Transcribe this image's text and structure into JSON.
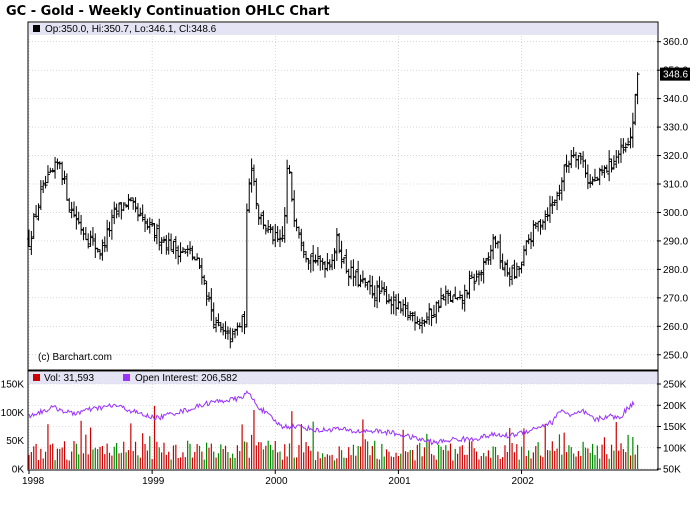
{
  "chart_data": {
    "type": "ohlc",
    "title": "GC - Gold - Weekly Continuation OHLC Chart",
    "copyright": "(c) Barchart.com",
    "price_panel": {
      "legend": "Op:350.0, Hi:350.7, Lo:346.1, Cl:348.6",
      "last_price_label": "348.6",
      "last_price": 348.6,
      "ylim": [
        245,
        362
      ],
      "yticks": [
        250,
        260,
        270,
        280,
        290,
        300,
        310,
        320,
        330,
        340,
        350,
        360
      ],
      "ytick_labels": [
        "250.0",
        "260.0",
        "270.0",
        "280.0",
        "290.0",
        "300.0",
        "310.0",
        "320.0",
        "330.0",
        "340.0",
        "350.0",
        "360.0"
      ],
      "grid": true,
      "anchors": [
        [
          1998.0,
          290
        ],
        [
          1998.1,
          307
        ],
        [
          1998.25,
          318
        ],
        [
          1998.33,
          302
        ],
        [
          1998.45,
          293
        ],
        [
          1998.58,
          286
        ],
        [
          1998.7,
          300
        ],
        [
          1998.8,
          304
        ],
        [
          1998.93,
          296
        ],
        [
          1999.05,
          292
        ],
        [
          1999.2,
          287
        ],
        [
          1999.3,
          286
        ],
        [
          1999.4,
          280
        ],
        [
          1999.45,
          270
        ],
        [
          1999.52,
          260
        ],
        [
          1999.58,
          257
        ],
        [
          1999.65,
          256
        ],
        [
          1999.7,
          260
        ],
        [
          1999.75,
          262
        ],
        [
          1999.77,
          300
        ],
        [
          1999.8,
          320
        ],
        [
          1999.86,
          300
        ],
        [
          1999.95,
          293
        ],
        [
          2000.05,
          288
        ],
        [
          2000.08,
          300
        ],
        [
          2000.1,
          318
        ],
        [
          2000.15,
          300
        ],
        [
          2000.25,
          286
        ],
        [
          2000.35,
          282
        ],
        [
          2000.45,
          283
        ],
        [
          2000.5,
          290
        ],
        [
          2000.58,
          280
        ],
        [
          2000.7,
          275
        ],
        [
          2000.8,
          272
        ],
        [
          2000.9,
          271
        ],
        [
          2001.0,
          266
        ],
        [
          2001.1,
          264
        ],
        [
          2001.2,
          262
        ],
        [
          2001.28,
          265
        ],
        [
          2001.35,
          270
        ],
        [
          2001.42,
          270
        ],
        [
          2001.5,
          268
        ],
        [
          2001.58,
          275
        ],
        [
          2001.65,
          278
        ],
        [
          2001.72,
          282
        ],
        [
          2001.78,
          292
        ],
        [
          2001.85,
          280
        ],
        [
          2001.9,
          279
        ],
        [
          2001.95,
          278
        ],
        [
          2002.0,
          282
        ],
        [
          2002.05,
          290
        ],
        [
          2002.12,
          295
        ],
        [
          2002.2,
          300
        ],
        [
          2002.28,
          305
        ],
        [
          2002.35,
          315
        ],
        [
          2002.42,
          322
        ],
        [
          2002.5,
          318
        ],
        [
          2002.55,
          310
        ],
        [
          2002.62,
          312
        ],
        [
          2002.7,
          316
        ],
        [
          2002.78,
          320
        ],
        [
          2002.85,
          322
        ],
        [
          2002.88,
          325
        ],
        [
          2002.92,
          338
        ],
        [
          2002.95,
          348.6
        ]
      ]
    },
    "volume_panel": {
      "legend_volume": "Vol: 31,593",
      "legend_open_interest": "Open Interest: 206,582",
      "volume_color": "#cc0000",
      "volume_alt_color": "#008800",
      "open_interest_color": "#9933ff",
      "left_ylim": [
        0,
        150000
      ],
      "left_ytick_labels": [
        "0K",
        "50K",
        "100K",
        "150K"
      ],
      "right_ylim": [
        50000,
        250000
      ],
      "right_ytick_labels": [
        "50K",
        "100K",
        "150K",
        "200K",
        "250K"
      ],
      "open_interest_anchors": [
        [
          1998.0,
          175000
        ],
        [
          1998.1,
          185000
        ],
        [
          1998.2,
          195000
        ],
        [
          1998.35,
          180000
        ],
        [
          1998.5,
          190000
        ],
        [
          1998.6,
          195000
        ],
        [
          1998.7,
          200000
        ],
        [
          1998.85,
          185000
        ],
        [
          1998.95,
          175000
        ],
        [
          1999.05,
          170000
        ],
        [
          1999.15,
          180000
        ],
        [
          1999.3,
          190000
        ],
        [
          1999.45,
          205000
        ],
        [
          1999.55,
          210000
        ],
        [
          1999.7,
          215000
        ],
        [
          1999.78,
          230000
        ],
        [
          1999.85,
          200000
        ],
        [
          1999.95,
          175000
        ],
        [
          2000.05,
          150000
        ],
        [
          2000.2,
          150000
        ],
        [
          2000.35,
          140000
        ],
        [
          2000.5,
          145000
        ],
        [
          2000.65,
          138000
        ],
        [
          2000.8,
          140000
        ],
        [
          2000.95,
          135000
        ],
        [
          2001.1,
          125000
        ],
        [
          2001.2,
          118000
        ],
        [
          2001.3,
          112000
        ],
        [
          2001.45,
          120000
        ],
        [
          2001.6,
          120000
        ],
        [
          2001.75,
          130000
        ],
        [
          2001.9,
          128000
        ],
        [
          2002.05,
          140000
        ],
        [
          2002.15,
          150000
        ],
        [
          2002.25,
          160000
        ],
        [
          2002.32,
          190000
        ],
        [
          2002.4,
          175000
        ],
        [
          2002.5,
          185000
        ],
        [
          2002.6,
          165000
        ],
        [
          2002.7,
          175000
        ],
        [
          2002.8,
          170000
        ],
        [
          2002.85,
          190000
        ],
        [
          2002.92,
          206582
        ]
      ]
    },
    "x_axis": {
      "xlim": [
        1998.0,
        2003.1
      ],
      "ticks": [
        1998,
        1999,
        2000,
        2001,
        2002
      ],
      "tick_labels": [
        "1998",
        "1999",
        "2000",
        "2001",
        "2002"
      ]
    },
    "colors": {
      "bars": "#000000",
      "grid": "#c0c0c0",
      "legend_band": "#e4e4f4",
      "price_legend_square": "#000000",
      "last_price_box": "#000000"
    }
  }
}
